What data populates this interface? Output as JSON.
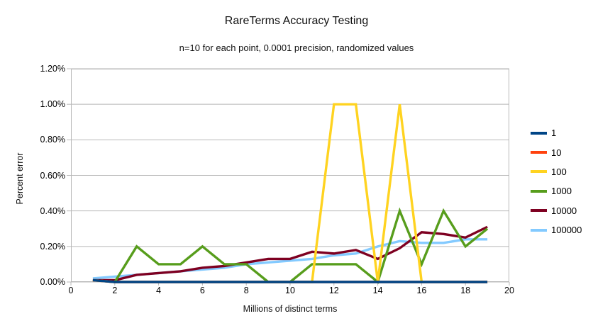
{
  "chart_data": {
    "type": "line",
    "title": "RareTerms Accuracy Testing",
    "subtitle": "n=10 for each point, 0.0001 precision, randomized values",
    "xlabel": "Millions of distinct terms",
    "ylabel": "Percent error",
    "xlim": [
      0,
      20
    ],
    "ylim": [
      0,
      1.2
    ],
    "grid": "horizontal",
    "legend_position": "right",
    "axis_color": "#b8b8b8",
    "x_ticks": [
      {
        "value": 0,
        "label": "0"
      },
      {
        "value": 2,
        "label": "2"
      },
      {
        "value": 4,
        "label": "4"
      },
      {
        "value": 6,
        "label": "6"
      },
      {
        "value": 8,
        "label": "8"
      },
      {
        "value": 10,
        "label": "10"
      },
      {
        "value": 12,
        "label": "12"
      },
      {
        "value": 14,
        "label": "14"
      },
      {
        "value": 16,
        "label": "16"
      },
      {
        "value": 18,
        "label": "18"
      },
      {
        "value": 20,
        "label": "20"
      }
    ],
    "y_ticks": [
      {
        "value": 0.0,
        "label": "0.00%"
      },
      {
        "value": 0.2,
        "label": "0.20%"
      },
      {
        "value": 0.4,
        "label": "0.40%"
      },
      {
        "value": 0.6,
        "label": "0.60%"
      },
      {
        "value": 0.8,
        "label": "0.80%"
      },
      {
        "value": 1.0,
        "label": "1.00%"
      },
      {
        "value": 1.2,
        "label": "1.20%"
      }
    ],
    "x": [
      1,
      2,
      3,
      4,
      5,
      6,
      7,
      8,
      9,
      10,
      11,
      12,
      13,
      14,
      15,
      16,
      17,
      18,
      19
    ],
    "series": [
      {
        "name": "1",
        "color": "#004586",
        "values": [
          0.01,
          0.0,
          0.0,
          0.0,
          0.0,
          0.0,
          0.0,
          0.0,
          0.0,
          0.0,
          0.0,
          0.0,
          0.0,
          0.0,
          0.0,
          0.0,
          0.0,
          0.0,
          0.0
        ]
      },
      {
        "name": "10",
        "color": "#ff420e",
        "values": [
          0.01,
          0.0,
          0.0,
          0.0,
          0.0,
          0.0,
          0.0,
          0.0,
          0.0,
          0.0,
          0.0,
          0.0,
          0.0,
          0.0,
          0.0,
          0.0,
          0.0,
          0.0,
          0.0
        ]
      },
      {
        "name": "100",
        "color": "#ffd320",
        "values": [
          0.01,
          0.0,
          0.0,
          0.0,
          0.0,
          0.0,
          0.0,
          0.0,
          0.0,
          0.0,
          0.0,
          1.0,
          1.0,
          0.0,
          1.0,
          0.0,
          0.0,
          0.0,
          0.0
        ]
      },
      {
        "name": "1000",
        "color": "#579d1c",
        "values": [
          0.01,
          0.0,
          0.2,
          0.1,
          0.1,
          0.2,
          0.1,
          0.1,
          0.0,
          0.0,
          0.1,
          0.1,
          0.1,
          0.0,
          0.4,
          0.1,
          0.4,
          0.2,
          0.3
        ]
      },
      {
        "name": "10000",
        "color": "#7e0021",
        "values": [
          0.01,
          0.01,
          0.04,
          0.05,
          0.06,
          0.08,
          0.09,
          0.11,
          0.13,
          0.13,
          0.17,
          0.16,
          0.18,
          0.13,
          0.19,
          0.28,
          0.27,
          0.25,
          0.31
        ]
      },
      {
        "name": "100000",
        "color": "#83caff",
        "values": [
          0.02,
          0.03,
          0.04,
          0.05,
          0.06,
          0.07,
          0.08,
          0.1,
          0.11,
          0.12,
          0.13,
          0.15,
          0.16,
          0.2,
          0.23,
          0.22,
          0.22,
          0.24,
          0.24
        ]
      }
    ]
  }
}
